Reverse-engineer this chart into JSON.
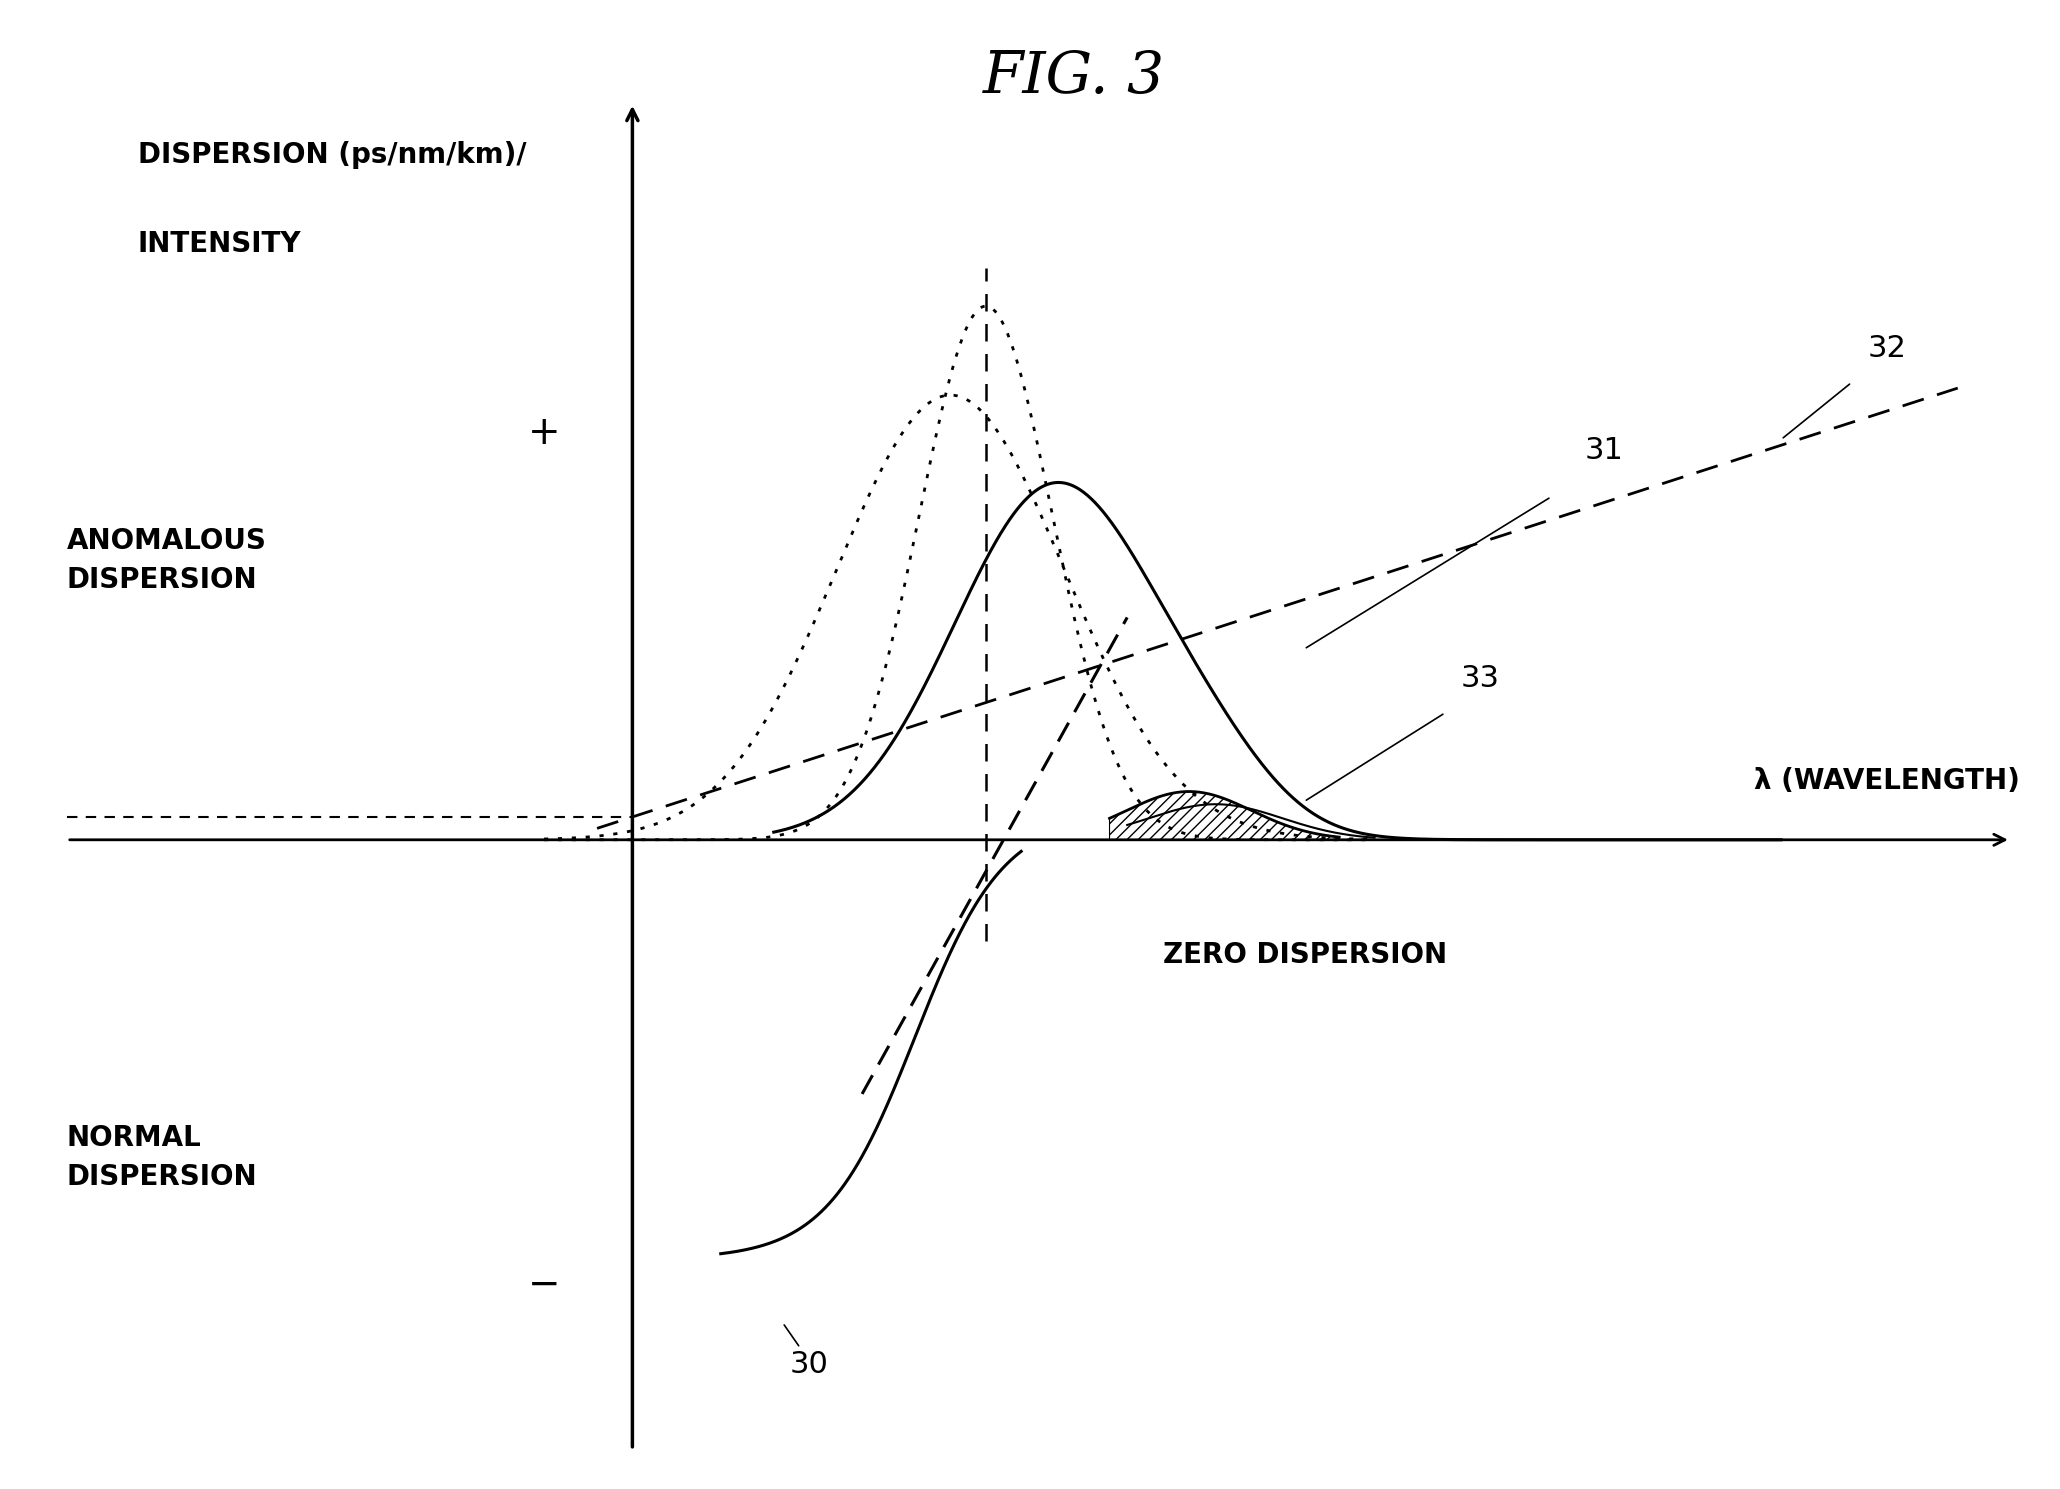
{
  "title": "FIG. 3",
  "title_fontsize": 42,
  "ylabel_line1": "DISPERSION (ps/nm/km)/",
  "ylabel_line2": "INTENSITY",
  "xlabel": "λ (WAVELENGTH)",
  "label_fontsize": 20,
  "plus_label": "+",
  "minus_label": "−",
  "anomalous_label": "ANOMALOUS\nDISPERSION",
  "normal_label": "NORMAL\nDISPERSION",
  "zero_dispersion_label": "ZERO DISPERSION",
  "label_30": "30",
  "label_31": "31",
  "label_32": "32",
  "label_33": "33",
  "bg_color": "#ffffff",
  "line_color": "#000000"
}
